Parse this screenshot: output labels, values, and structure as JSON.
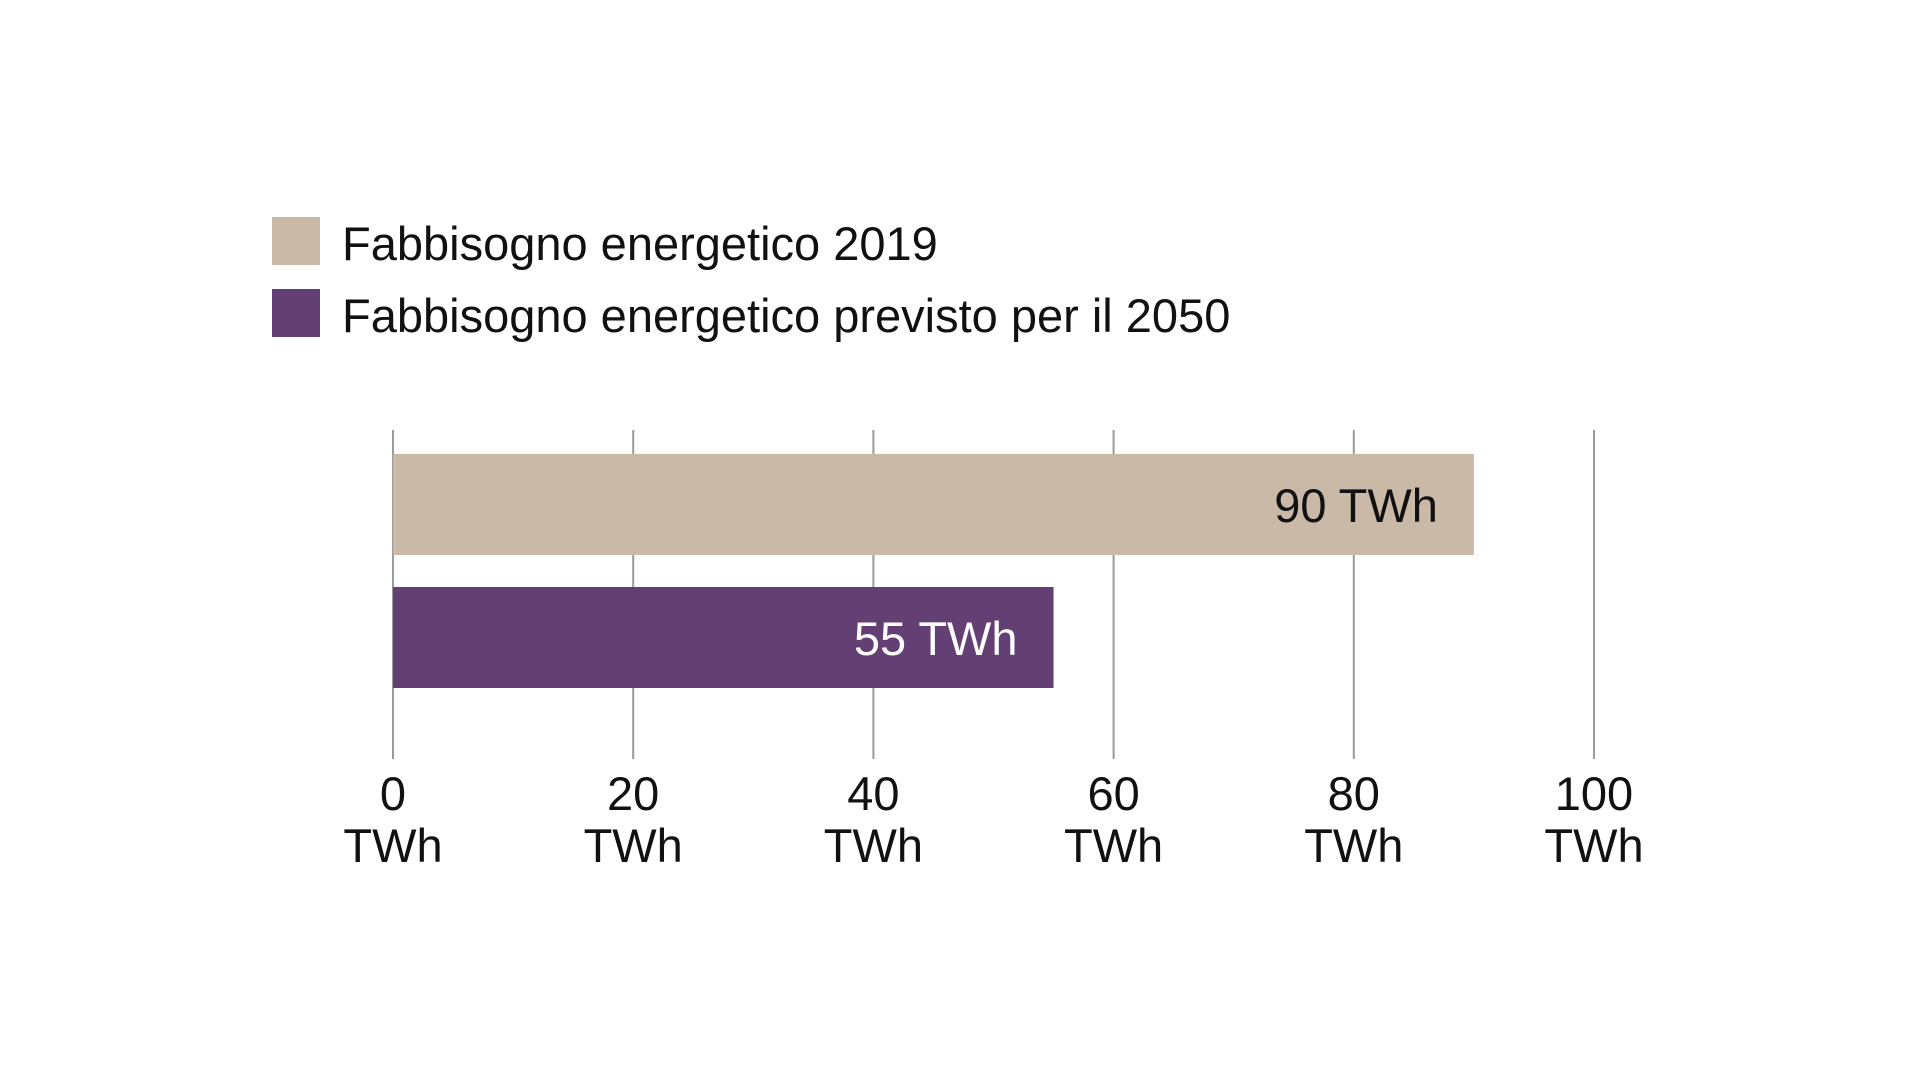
{
  "chart_data": {
    "type": "bar",
    "orientation": "horizontal",
    "title": "",
    "xlabel": "",
    "ylabel": "",
    "xlim": [
      0,
      100
    ],
    "grid": true,
    "legend_position": "top-left",
    "series": [
      {
        "name": "Fabbisogno energetico 2019",
        "value": 90,
        "label": "90 TWh",
        "color": "#cbb9a8",
        "label_color": "#111111"
      },
      {
        "name": "Fabbisogno energetico previsto per il 2050",
        "value": 55,
        "label": "55 TWh",
        "color": "#643f73",
        "label_color": "#ffffff"
      }
    ],
    "ticks": [
      {
        "value": 0,
        "label": "0",
        "unit": "TWh"
      },
      {
        "value": 20,
        "label": "20",
        "unit": "TWh"
      },
      {
        "value": 40,
        "label": "40",
        "unit": "TWh"
      },
      {
        "value": 60,
        "label": "60",
        "unit": "TWh"
      },
      {
        "value": 80,
        "label": "80",
        "unit": "TWh"
      },
      {
        "value": 100,
        "label": "100",
        "unit": "TWh"
      }
    ]
  }
}
